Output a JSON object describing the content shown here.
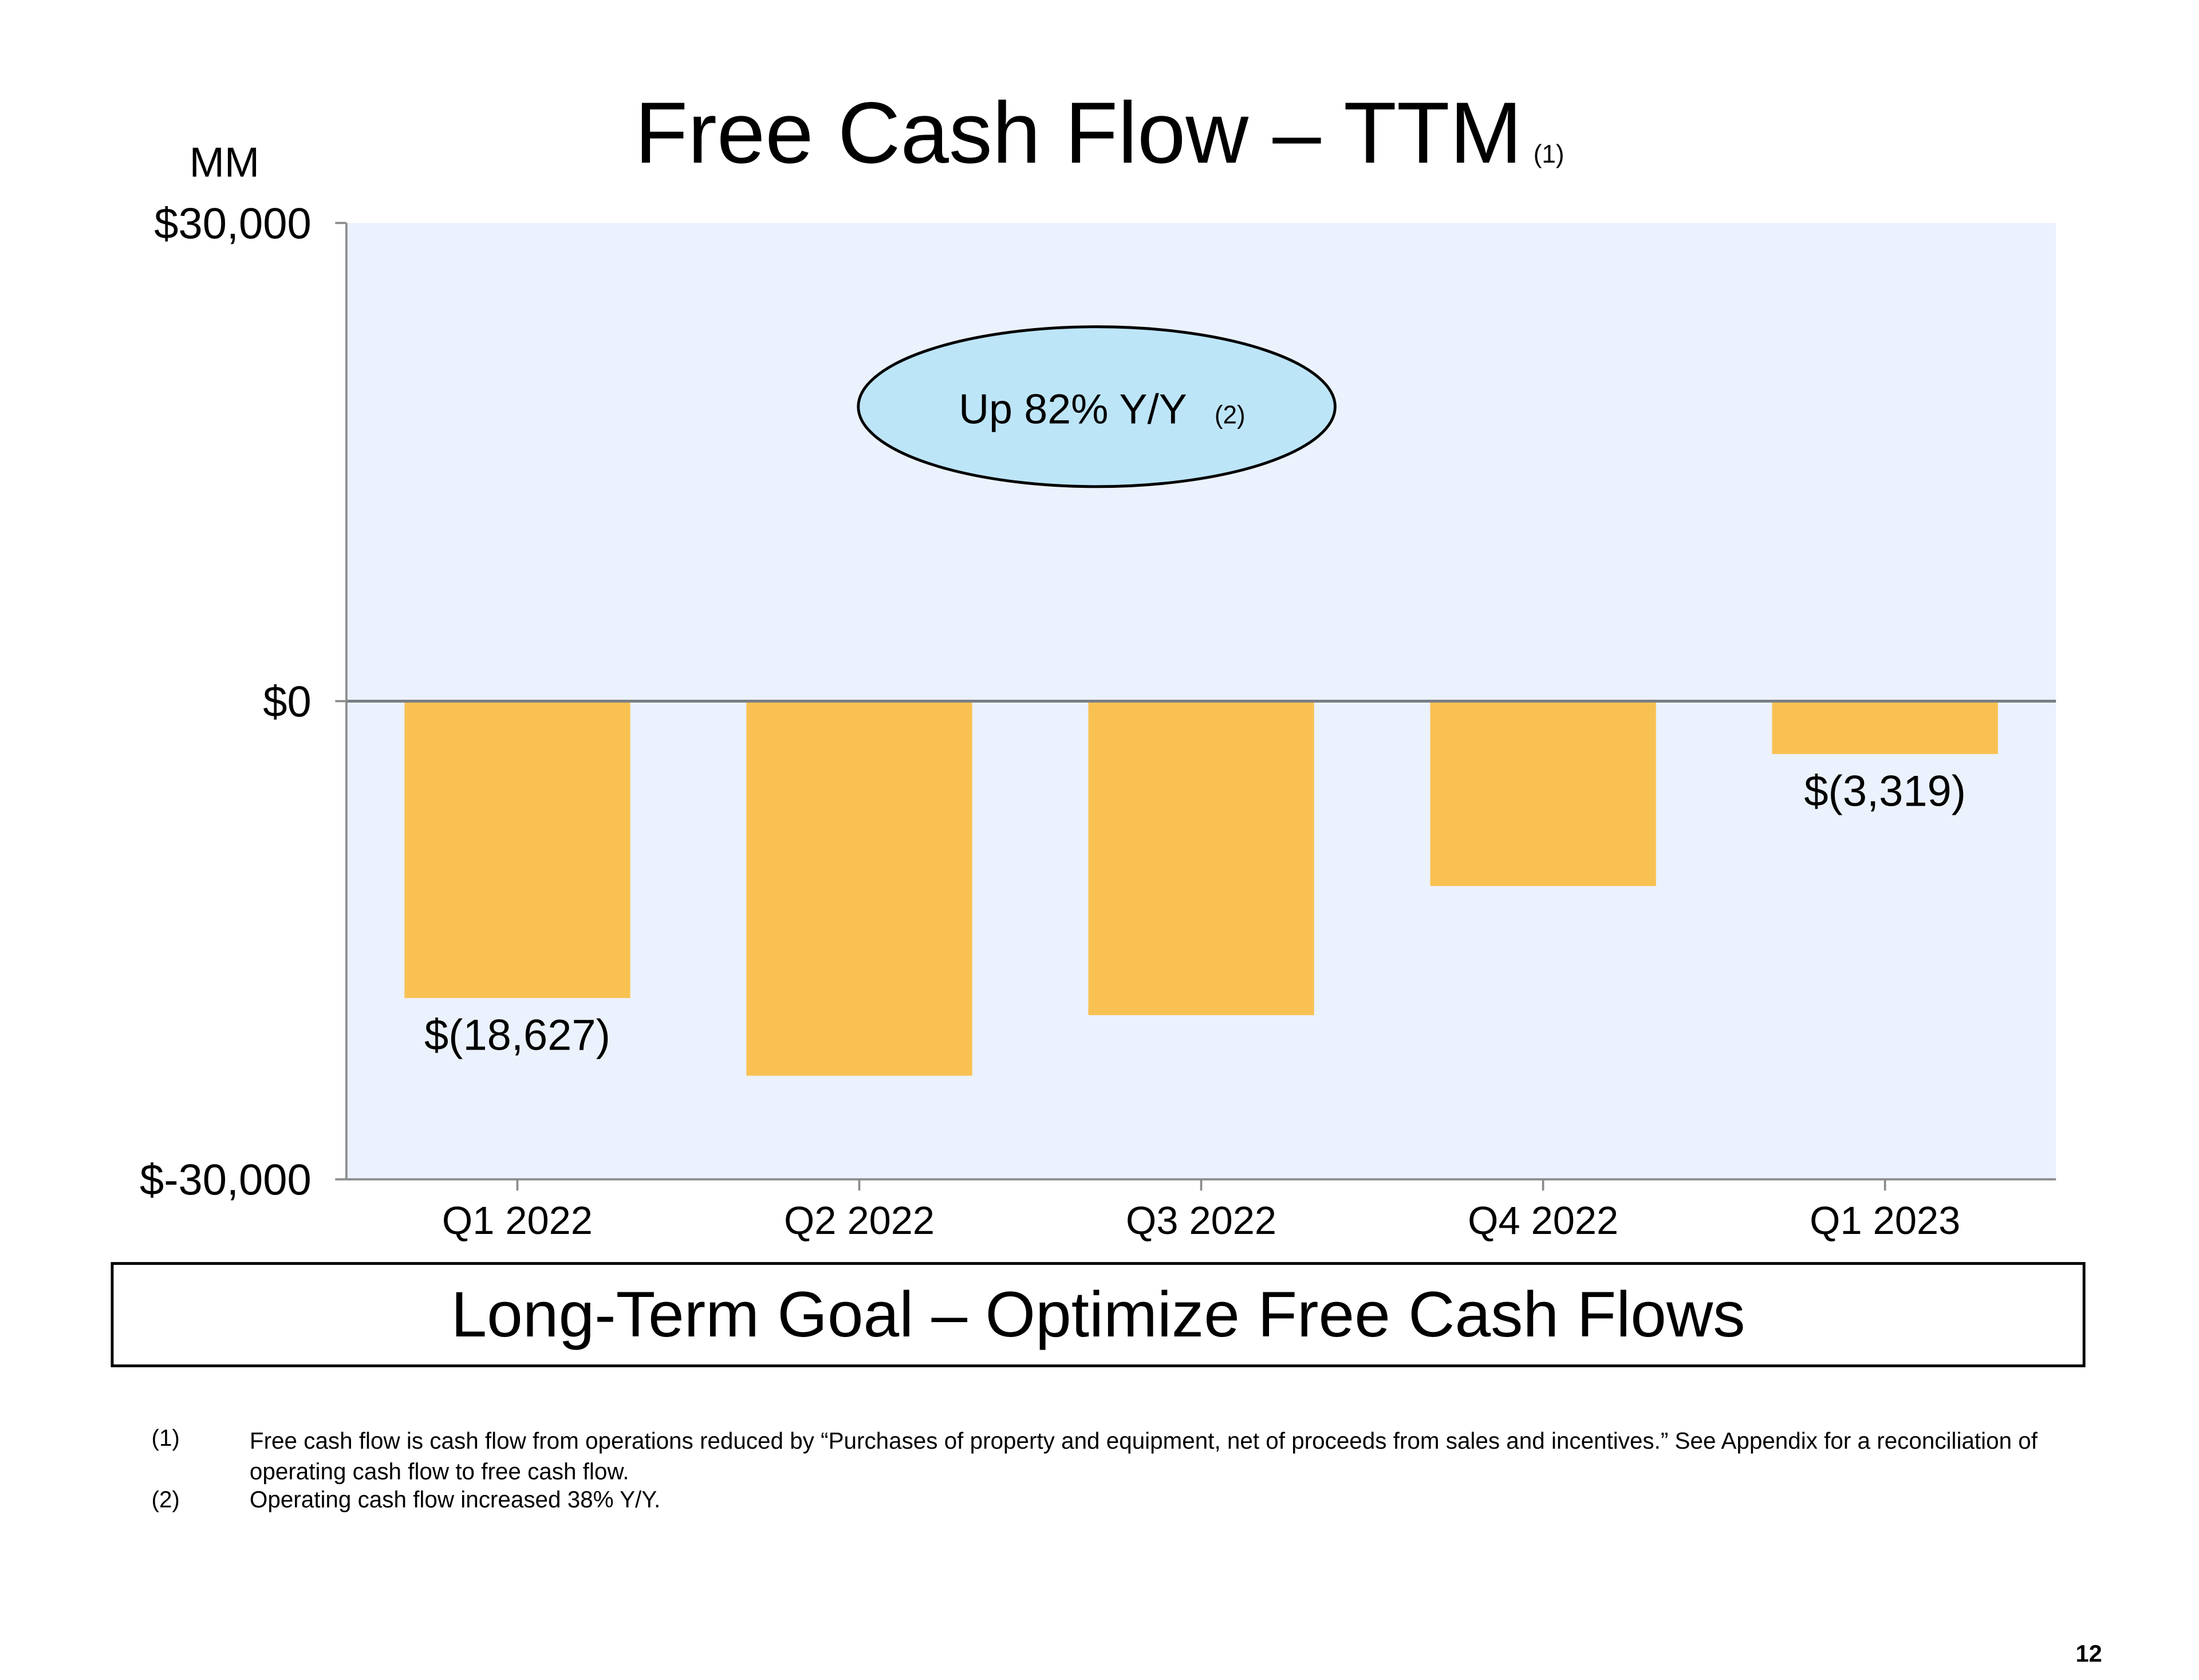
{
  "title": "Free Cash Flow – TTM",
  "title_footnote": "(1)",
  "unit_label": "MM",
  "chart_data": {
    "type": "bar",
    "title": "Free Cash Flow – TTM",
    "ylabel": "MM",
    "categories": [
      "Q1 2022",
      "Q2 2022",
      "Q3 2022",
      "Q4 2022",
      "Q1 2023"
    ],
    "values": [
      -18627,
      -23500,
      -19700,
      -11600,
      -3319
    ],
    "data_labels": [
      "$(18,627)",
      "",
      "",
      "",
      "$(3,319)"
    ],
    "ylim": [
      -30000,
      30000
    ],
    "yticks": [
      30000,
      0,
      -30000
    ],
    "ytick_labels": [
      "$30,000",
      "$0",
      "$-30,000"
    ],
    "grid": false,
    "bar_color": "#F9C152",
    "plot_background": "#EBF2FD",
    "annotation": {
      "text": "Up 82% Y/Y",
      "footnote": "(2)",
      "fill": "#BDE5F8"
    }
  },
  "goal_box": "Long-Term Goal – Optimize Free Cash Flows",
  "footnotes": [
    {
      "marker": "(1)",
      "text": "Free cash flow is cash flow from operations reduced by “Purchases of property and equipment, net of proceeds from sales and incentives.” See Appendix for a reconciliation of operating cash flow to free cash flow."
    },
    {
      "marker": "(2)",
      "text": "Operating cash flow increased 38% Y/Y."
    }
  ],
  "page_number": "12"
}
